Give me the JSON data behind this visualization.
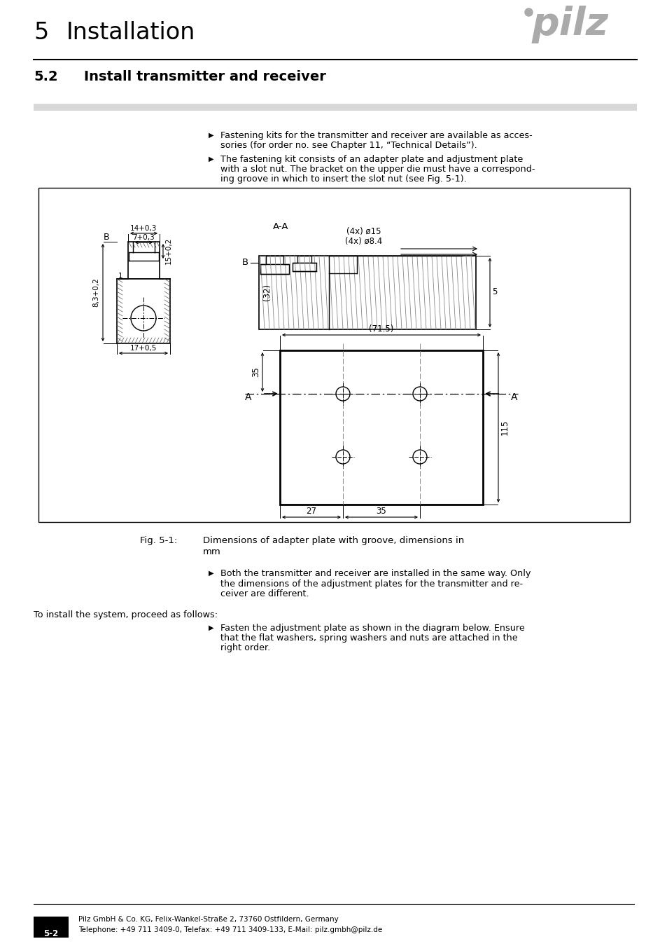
{
  "bg_color": "#ffffff",
  "header_chapter_num": "5",
  "header_chapter_title": "Installation",
  "header_section_num": "5.2",
  "header_section_title": "Install transmitter and receiver",
  "pilz_logo_color": "#aaaaaa",
  "separator_band_color": "#d8d8d8",
  "bullet_char": "▶",
  "body_font_size": 9.2,
  "bullet_text_1a": "Fastening kits for the transmitter and receiver are available as acces-",
  "bullet_text_1b": "sories (for order no. see Chapter 11, “Technical Details”).",
  "bullet_text_2a": "The fastening kit consists of an adapter plate and adjustment plate",
  "bullet_text_2b": "with a slot nut. The bracket on the upper die must have a correspond-",
  "bullet_text_2c": "ing groove in which to insert the slot nut (see Fig. 5-1).",
  "fig_caption_label": "Fig. 5-1:",
  "fig_caption_text1": "Dimensions of adapter plate with groove, dimensions in",
  "fig_caption_text2": "mm",
  "bullet_text_3a": "Both the transmitter and receiver are installed in the same way. Only",
  "bullet_text_3b": "the dimensions of the adjustment plates for the transmitter and re-",
  "bullet_text_3c": "ceiver are different.",
  "para_text_1": "To install the system, proceed as follows:",
  "bullet_text_4a": "Fasten the adjustment plate as shown in the diagram below. Ensure",
  "bullet_text_4b": "that the flat washers, spring washers and nuts are attached in the",
  "bullet_text_4c": "right order.",
  "footer_page_label": "5-2",
  "footer_company": "Pilz GmbH & Co. KG, Felix-Wankel-Straße 2, 73760 Ostfildern, Germany",
  "footer_phone": "Telephone: +49 711 3409-0, Telefax: +49 711 3409-133, E-Mail: pilz.gmbh@pilz.de"
}
